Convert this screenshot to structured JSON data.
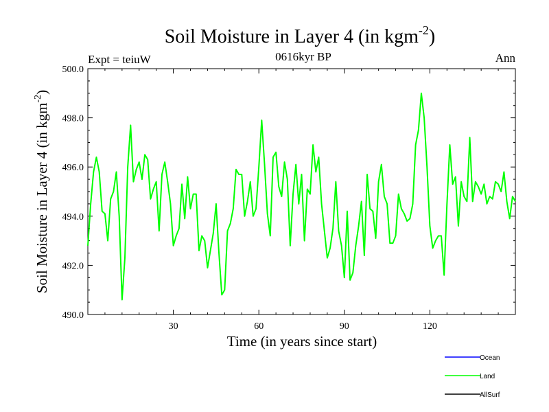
{
  "chart_data": {
    "type": "line",
    "title": "Soil Moisture in Layer 4 (in kgm",
    "title_sup": "-2",
    "title_close": ")",
    "subtitle": "0616kyr BP",
    "left_label": "Expt = teiuW",
    "right_label": "Ann",
    "xlabel": "Time (in years since start)",
    "ylabel": "Soil Moisture in Layer 4 (in kgm",
    "ylabel_sup": "-2",
    "ylabel_close": ")",
    "xlim": [
      0,
      150
    ],
    "ylim": [
      490.0,
      500.0
    ],
    "x_ticks": [
      30,
      60,
      90,
      120
    ],
    "x_tick_labels": [
      "30",
      "60",
      "90",
      "120"
    ],
    "y_ticks": [
      490,
      492,
      494,
      496,
      498,
      500
    ],
    "y_tick_labels": [
      "490.0",
      "492.0",
      "494.0",
      "496.0",
      "498.0",
      "500.0"
    ],
    "legend": [
      {
        "name": "Ocean",
        "color": "#0000ff"
      },
      {
        "name": "Land",
        "color": "#00ff00"
      },
      {
        "name": "AllSurf",
        "color": "#000000"
      }
    ],
    "series": [
      {
        "name": "Land",
        "color": "#00ff00",
        "x": [
          0,
          1,
          2,
          3,
          4,
          5,
          6,
          7,
          8,
          9,
          10,
          11,
          12,
          13,
          14,
          15,
          16,
          17,
          18,
          19,
          20,
          21,
          22,
          23,
          24,
          25,
          26,
          27,
          28,
          29,
          30,
          31,
          32,
          33,
          34,
          35,
          36,
          37,
          38,
          39,
          40,
          41,
          42,
          43,
          44,
          45,
          46,
          47,
          48,
          49,
          50,
          51,
          52,
          53,
          54,
          55,
          56,
          57,
          58,
          59,
          60,
          61,
          62,
          63,
          64,
          65,
          66,
          67,
          68,
          69,
          70,
          71,
          72,
          73,
          74,
          75,
          76,
          77,
          78,
          79,
          80,
          81,
          82,
          83,
          84,
          85,
          86,
          87,
          88,
          89,
          90,
          91,
          92,
          93,
          94,
          95,
          96,
          97,
          98,
          99,
          100,
          101,
          102,
          103,
          104,
          105,
          106,
          107,
          108,
          109,
          110,
          111,
          112,
          113,
          114,
          115,
          116,
          117,
          118,
          119,
          120,
          121,
          122,
          123,
          124,
          125,
          126,
          127,
          128,
          129,
          130,
          131,
          132,
          133,
          134,
          135,
          136,
          137,
          138,
          139,
          140,
          141,
          142,
          143,
          144,
          145,
          146,
          147,
          148,
          149,
          150
        ],
        "values": [
          492.8,
          494.5,
          495.8,
          496.4,
          495.8,
          494.2,
          494.1,
          493.0,
          494.7,
          495.0,
          495.8,
          494.0,
          490.6,
          492.3,
          496.0,
          497.7,
          495.4,
          495.9,
          496.2,
          495.5,
          496.5,
          496.3,
          494.7,
          495.1,
          495.4,
          493.4,
          495.7,
          496.2,
          495.4,
          494.5,
          492.8,
          493.2,
          493.5,
          495.3,
          493.9,
          495.6,
          494.3,
          494.9,
          494.9,
          492.6,
          493.2,
          493.0,
          491.9,
          492.6,
          493.3,
          494.5,
          492.5,
          490.8,
          491.0,
          493.4,
          493.7,
          494.3,
          495.9,
          495.7,
          495.7,
          494.0,
          494.6,
          495.4,
          494.0,
          494.3,
          496.0,
          497.9,
          496.1,
          494.1,
          493.2,
          496.4,
          496.6,
          495.2,
          494.8,
          496.2,
          495.5,
          492.8,
          494.9,
          496.1,
          494.5,
          495.7,
          493.0,
          495.1,
          494.9,
          496.9,
          495.8,
          496.4,
          494.5,
          493.4,
          492.3,
          492.7,
          493.5,
          495.4,
          493.4,
          492.8,
          491.5,
          494.2,
          491.4,
          491.7,
          492.8,
          493.6,
          494.6,
          492.4,
          495.7,
          494.3,
          494.2,
          493.1,
          495.4,
          496.1,
          494.8,
          494.5,
          492.9,
          492.9,
          493.2,
          494.9,
          494.3,
          494.1,
          493.8,
          493.9,
          494.5,
          496.9,
          497.5,
          499.0,
          498.0,
          496.0,
          493.6,
          492.7,
          493.0,
          493.2,
          493.2,
          491.6,
          494.5,
          496.9,
          495.3,
          495.6,
          493.6,
          495.4,
          494.8,
          494.6,
          497.2,
          494.6,
          495.4,
          495.2,
          494.9,
          495.3,
          494.5,
          494.8,
          494.7,
          495.4,
          495.3,
          495.0,
          495.8,
          494.6,
          493.9,
          494.8,
          494.6
        ]
      }
    ]
  }
}
